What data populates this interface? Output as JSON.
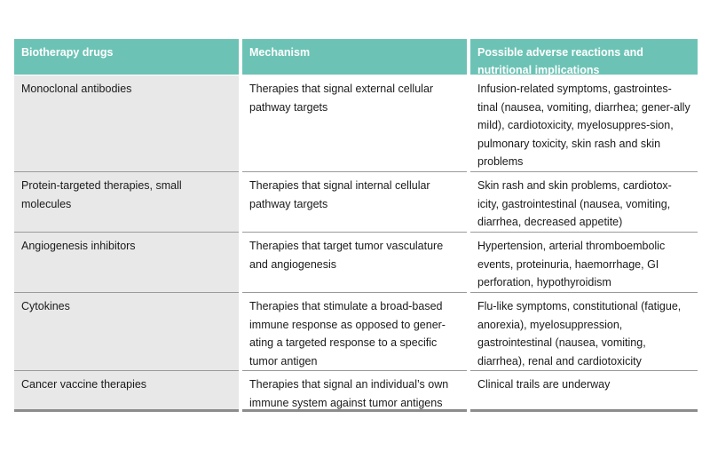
{
  "table": {
    "headers": [
      "Biotherapy drugs",
      "Mechanism",
      "Possible adverse reactions and nutritional implications"
    ],
    "rows": [
      {
        "drug": "Monoclonal antibodies",
        "mechanism": "Therapies that signal external cellular pathway targets",
        "reactions": "Infusion-related symptoms, gastrointes-tinal (nausea, vomiting, diarrhea; gener-ally mild), cardiotoxicity, myelosuppres-sion, pulmonary toxicity, skin rash and skin problems"
      },
      {
        "drug": "Protein-targeted therapies, small molecules",
        "mechanism": "Therapies that signal internal cellular pathway targets",
        "reactions": "Skin rash and skin problems, cardiotox-icity, gastrointestinal (nausea, vomiting, diarrhea, decreased appetite)"
      },
      {
        "drug": "Angiogenesis inhibitors",
        "mechanism": "Therapies that target tumor vasculature and angiogenesis",
        "reactions": "Hypertension, arterial thromboembolic events, proteinuria, haemorrhage, GI perforation, hypothyroidism"
      },
      {
        "drug": "Cytokines",
        "mechanism": "Therapies that stimulate a broad-based immune response as opposed to gener-ating a targeted response to a specific tumor antigen",
        "reactions": "Flu-like symptoms, constitutional (fatigue, anorexia), myelosuppression, gastrointestinal (nausea, vomiting, diarrhea), renal and cardiotoxicity"
      },
      {
        "drug": "Cancer vaccine therapies",
        "mechanism": "Therapies that signal an individual’s own immune system against tumor antigens",
        "reactions": "Clinical trails are underway"
      }
    ]
  }
}
